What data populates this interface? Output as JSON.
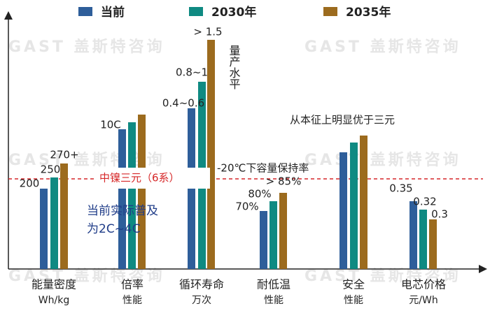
{
  "chart_data": {
    "type": "bar",
    "watermark": "GAST 盖斯特咨询",
    "categories": [
      [
        "能量密度",
        "Wh/kg"
      ],
      [
        "倍率",
        "性能"
      ],
      [
        "循环寿命",
        "万次"
      ],
      [
        "耐低温",
        "性能"
      ],
      [
        "安全",
        "性能"
      ],
      [
        "电芯价格",
        "元/Wh"
      ]
    ],
    "series": [
      {
        "name": "当前",
        "color": "#2e5e9a",
        "values": [
          115,
          200,
          230,
          83,
          167,
          97
        ]
      },
      {
        "name": "2030年",
        "color": "#0f8a82",
        "values": [
          131,
          210,
          268,
          97,
          181,
          85
        ]
      },
      {
        "name": "2035年",
        "color": "#9c6b1e",
        "values": [
          151,
          221,
          328,
          109,
          191,
          71
        ]
      }
    ],
    "bar_labels": [
      [
        "200",
        "10C",
        "0.4~0.6",
        "70%",
        null,
        "0.35"
      ],
      [
        "250",
        null,
        "0.8~1",
        "80%",
        null,
        "0.32"
      ],
      [
        "270+",
        null,
        "> 1.5",
        "> 85%",
        null,
        "0.3"
      ]
    ],
    "ylim": [
      0,
      355
    ],
    "reference_label": "中镍三元（6系）",
    "annotations": [
      "-20℃下容量保持率",
      "量产水平",
      "从本征上明显优于三元",
      "当前实际普及",
      "为2C~4C"
    ]
  }
}
